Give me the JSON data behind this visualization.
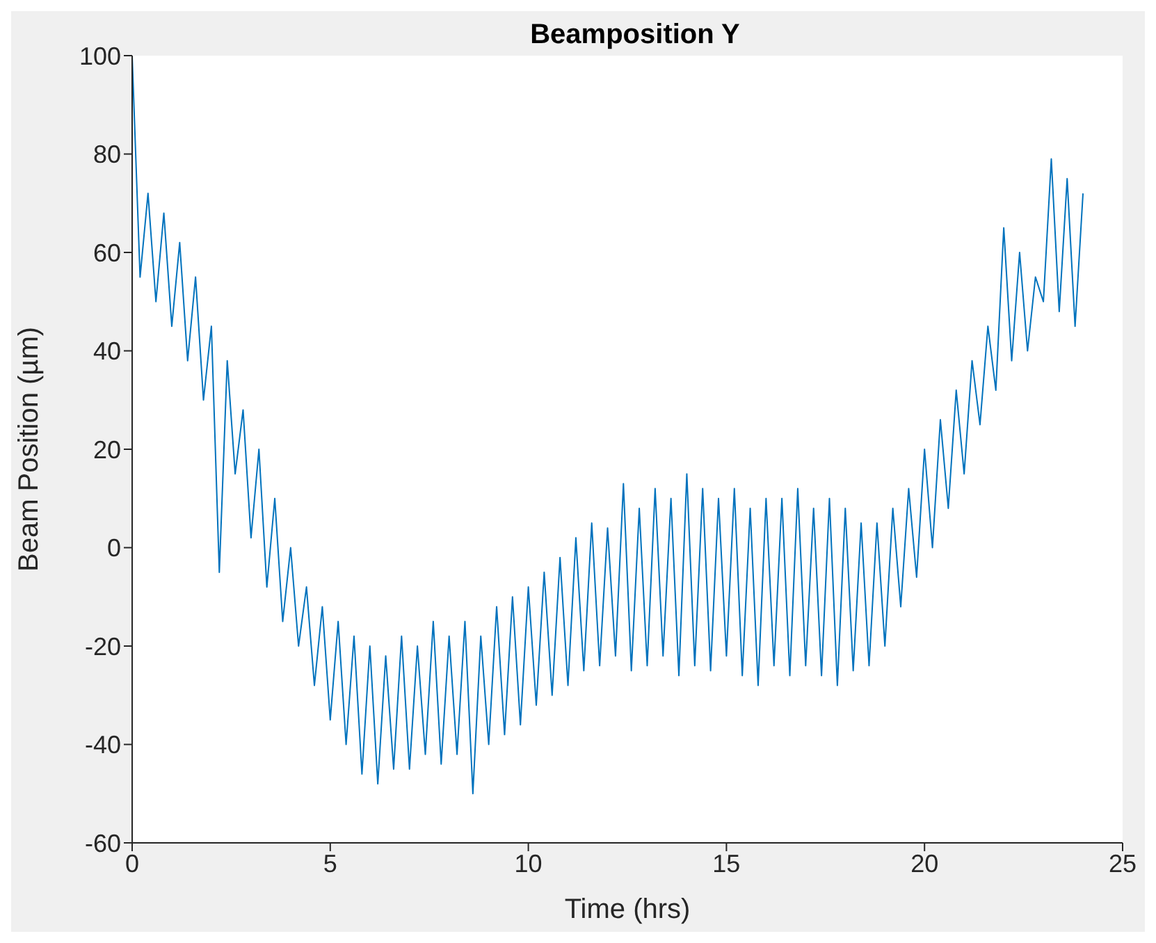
{
  "chart_data": {
    "type": "line",
    "title": "Beamposition Y",
    "xlabel": "Time (hrs)",
    "ylabel": "Beam Position (µm)",
    "xlim": [
      0,
      25
    ],
    "xticks": [
      0,
      5,
      10,
      15,
      20,
      25
    ],
    "ylim": [
      -60,
      100
    ],
    "yticks": [
      -60,
      -40,
      -20,
      0,
      20,
      40,
      60,
      80,
      100
    ],
    "grid": false,
    "legend": false,
    "marker": "none",
    "line_style": "solid",
    "x": [
      0,
      0.2,
      0.4,
      0.6,
      0.8,
      1.0,
      1.2,
      1.4,
      1.6,
      1.8,
      2.0,
      2.2,
      2.4,
      2.6,
      2.8,
      3.0,
      3.2,
      3.4,
      3.6,
      3.8,
      4.0,
      4.2,
      4.4,
      4.6,
      4.8,
      5.0,
      5.2,
      5.4,
      5.6,
      5.8,
      6.0,
      6.2,
      6.4,
      6.6,
      6.8,
      7.0,
      7.2,
      7.4,
      7.6,
      7.8,
      8.0,
      8.2,
      8.4,
      8.6,
      8.8,
      9.0,
      9.2,
      9.4,
      9.6,
      9.8,
      10.0,
      10.2,
      10.4,
      10.6,
      10.8,
      11.0,
      11.2,
      11.4,
      11.6,
      11.8,
      12.0,
      12.2,
      12.4,
      12.6,
      12.8,
      13.0,
      13.2,
      13.4,
      13.6,
      13.8,
      14.0,
      14.2,
      14.4,
      14.6,
      14.8,
      15.0,
      15.2,
      15.4,
      15.6,
      15.8,
      16.0,
      16.2,
      16.4,
      16.6,
      16.8,
      17.0,
      17.2,
      17.4,
      17.6,
      17.8,
      18.0,
      18.2,
      18.4,
      18.6,
      18.8,
      19.0,
      19.2,
      19.4,
      19.6,
      19.8,
      20.0,
      20.2,
      20.4,
      20.6,
      20.8,
      21.0,
      21.2,
      21.4,
      21.6,
      21.8,
      22.0,
      22.2,
      22.4,
      22.6,
      22.8,
      23.0,
      23.2,
      23.4,
      23.6,
      23.8,
      24.0
    ],
    "series": [
      {
        "color": "#0072bd",
        "values": [
          100,
          55,
          72,
          50,
          68,
          45,
          62,
          38,
          55,
          30,
          45,
          -5,
          38,
          15,
          28,
          2,
          20,
          -8,
          10,
          -15,
          0,
          -20,
          -8,
          -28,
          -12,
          -35,
          -15,
          -40,
          -18,
          -46,
          -20,
          -48,
          -22,
          -45,
          -18,
          -45,
          -20,
          -42,
          -15,
          -44,
          -18,
          -42,
          -15,
          -50,
          -18,
          -40,
          -12,
          -38,
          -10,
          -36,
          -8,
          -32,
          -5,
          -30,
          -2,
          -28,
          2,
          -25,
          5,
          -24,
          4,
          -22,
          13,
          -25,
          8,
          -24,
          12,
          -22,
          10,
          -26,
          15,
          -24,
          12,
          -25,
          10,
          -22,
          12,
          -26,
          8,
          -28,
          10,
          -24,
          10,
          -26,
          12,
          -24,
          8,
          -26,
          10,
          -28,
          8,
          -25,
          5,
          -24,
          5,
          -20,
          8,
          -12,
          12,
          -6,
          20,
          0,
          26,
          8,
          32,
          15,
          38,
          25,
          45,
          32,
          65,
          38,
          60,
          40,
          55,
          50,
          79,
          48,
          75,
          45,
          72
        ]
      }
    ]
  }
}
